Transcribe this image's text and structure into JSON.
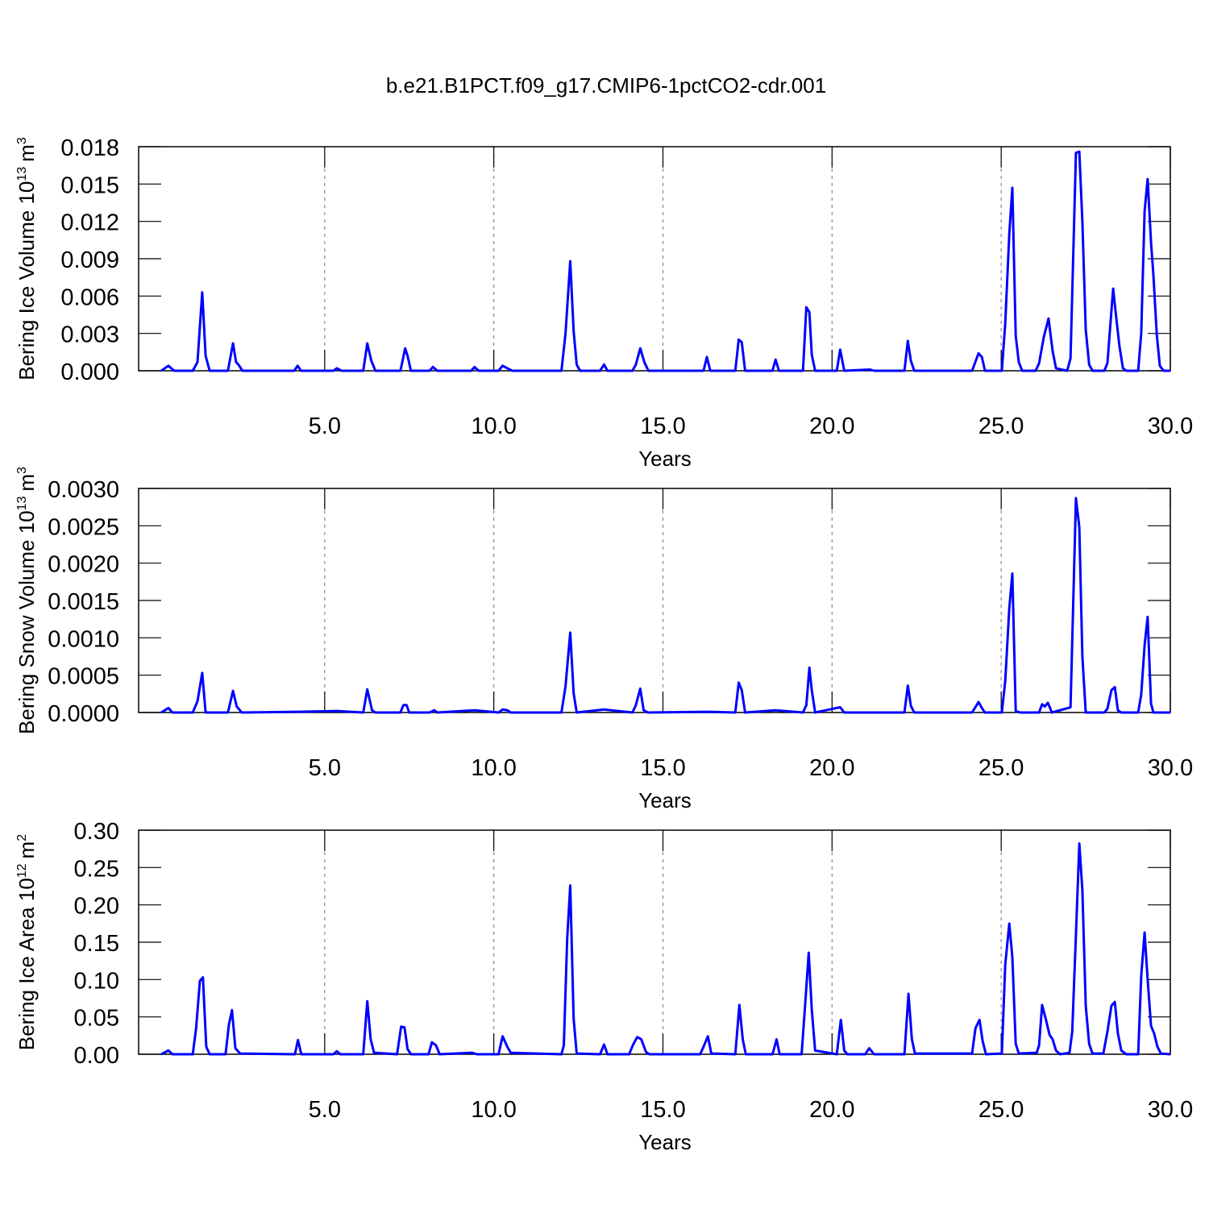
{
  "title": "b.e21.B1PCT.f09_g17.CMIP6-1pctCO2-cdr.001",
  "chart_data": [
    {
      "type": "line",
      "xlabel": "Years",
      "ylabel": {
        "text": "Bering Ice Volume 10",
        "power": "13",
        "unit": "m",
        "unit_power": "3"
      },
      "xlim": [
        -0.5,
        30
      ],
      "xticks": [
        {
          "value": 5,
          "label": "5.0"
        },
        {
          "value": 10,
          "label": "10.0"
        },
        {
          "value": 15,
          "label": "15.0"
        },
        {
          "value": 20,
          "label": "20.0"
        },
        {
          "value": 25,
          "label": "25.0"
        },
        {
          "value": 30,
          "label": "30.0"
        }
      ],
      "ylim": [
        0,
        0.018
      ],
      "yticks": [
        {
          "value": 0,
          "label": "0.000"
        },
        0.003,
        0.006,
        0.009,
        0.012,
        0.015,
        0.018
      ],
      "color": "#0000ff",
      "grid": true,
      "x": [
        0.17,
        0.38,
        0.55,
        1.1,
        1.24,
        1.38,
        1.48,
        1.6,
        2.14,
        2.29,
        2.38,
        2.45,
        2.57,
        4.1,
        4.2,
        4.3,
        5.26,
        5.36,
        5.5,
        6.14,
        6.26,
        6.38,
        6.5,
        7.24,
        7.38,
        7.45,
        7.55,
        8.1,
        8.2,
        8.33,
        9.33,
        9.43,
        9.55,
        10.14,
        10.26,
        10.4,
        10.55,
        12,
        12.12,
        12.26,
        12.36,
        12.45,
        12.55,
        13.14,
        13.26,
        13.36,
        14.1,
        14.2,
        14.33,
        14.45,
        14.57,
        16.2,
        16.3,
        16.4,
        17.14,
        17.24,
        17.33,
        17.43,
        18.24,
        18.33,
        18.43,
        19.14,
        19.24,
        19.33,
        19.4,
        19.5,
        20.14,
        20.24,
        20.36,
        21.12,
        21.24,
        22.14,
        22.24,
        22.33,
        22.43,
        24.14,
        24.33,
        24.43,
        24.52,
        25.02,
        25.12,
        25.24,
        25.33,
        25.43,
        25.52,
        25.62,
        26.02,
        26.12,
        26.26,
        26.4,
        26.52,
        26.62,
        26.95,
        27.05,
        27.21,
        27.31,
        27.4,
        27.5,
        27.6,
        27.7,
        28.05,
        28.14,
        28.31,
        28.4,
        28.5,
        28.6,
        28.7,
        29.05,
        29.14,
        29.24,
        29.33,
        29.43,
        29.5,
        29.6,
        29.69,
        29.8,
        30
      ],
      "values": [
        0,
        0.0004,
        0,
        0,
        0.0007,
        0.0063,
        0.0012,
        0,
        0,
        0.0022,
        0.0007,
        0.0005,
        0,
        0,
        0.0004,
        0,
        0,
        0.0002,
        0,
        0,
        0.0022,
        0.0008,
        0,
        0,
        0.0018,
        0.0012,
        0,
        0,
        0.0003,
        0,
        0,
        0.0003,
        0,
        0,
        0.0004,
        0.0002,
        0,
        0,
        0.003,
        0.0088,
        0.0032,
        0.0005,
        0,
        0,
        0.0005,
        0,
        0,
        0.0005,
        0.0018,
        0.0007,
        0,
        0,
        0.0011,
        0,
        0,
        0.0025,
        0.0023,
        0,
        0,
        0.0009,
        0,
        0,
        0.0051,
        0.0047,
        0.0013,
        0,
        0,
        0.0017,
        0,
        0.0001,
        0,
        0,
        0.0024,
        0.0008,
        0,
        0,
        0.0014,
        0.0011,
        0,
        0,
        0.0038,
        0.011,
        0.0147,
        0.0028,
        0.0007,
        0,
        0,
        0.0006,
        0.0027,
        0.0042,
        0.0016,
        0.0002,
        0,
        0.001,
        0.0175,
        0.0176,
        0.012,
        0.0033,
        0.0005,
        0,
        0,
        0.0006,
        0.0066,
        0.0043,
        0.0019,
        0.0002,
        0,
        0,
        0.003,
        0.0128,
        0.0154,
        0.0103,
        0.0077,
        0.0029,
        0.0004,
        0,
        0
      ]
    },
    {
      "type": "line",
      "xlabel": "Years",
      "ylabel": {
        "text": "Bering Snow Volume 10",
        "power": "13",
        "unit": "m",
        "unit_power": "3"
      },
      "xlim": [
        -0.5,
        30
      ],
      "xticks": [
        {
          "value": 5,
          "label": "5.0"
        },
        {
          "value": 10,
          "label": "10.0"
        },
        {
          "value": 15,
          "label": "15.0"
        },
        {
          "value": 20,
          "label": "20.0"
        },
        {
          "value": 25,
          "label": "25.0"
        },
        {
          "value": 30,
          "label": "30.0"
        }
      ],
      "ylim": [
        0,
        0.003
      ],
      "yticks": [
        {
          "value": 0,
          "label": "0.0000"
        },
        {
          "value": 0.0005,
          "label": "0.0005"
        },
        {
          "value": 0.001,
          "label": "0.0010"
        },
        {
          "value": 0.0015,
          "label": "0.0015"
        },
        {
          "value": 0.002,
          "label": "0.0020"
        },
        {
          "value": 0.0025,
          "label": "0.0025"
        },
        {
          "value": 0.003,
          "label": "0.0030"
        }
      ],
      "color": "#0000ff",
      "grid": true,
      "x": [
        0.17,
        0.38,
        0.5,
        1.1,
        1.24,
        1.38,
        1.48,
        2.14,
        2.29,
        2.4,
        2.55,
        4.2,
        5.36,
        6.14,
        6.26,
        6.4,
        6.5,
        7.24,
        7.33,
        7.42,
        7.5,
        8.1,
        8.24,
        8.33,
        9.43,
        10.14,
        10.26,
        10.4,
        10.5,
        12,
        12.12,
        12.26,
        12.36,
        12.45,
        13.26,
        14.1,
        14.2,
        14.33,
        14.43,
        14.55,
        16.3,
        17.14,
        17.24,
        17.33,
        17.43,
        18.33,
        19.14,
        19.24,
        19.33,
        19.4,
        19.5,
        20.24,
        20.36,
        22.14,
        22.24,
        22.33,
        22.43,
        24.14,
        24.33,
        24.43,
        24.52,
        25.02,
        25.12,
        25.24,
        25.33,
        25.43,
        25.55,
        26.12,
        26.21,
        26.29,
        26.38,
        26.5,
        27.05,
        27.21,
        27.31,
        27.4,
        27.5,
        28.05,
        28.14,
        28.26,
        28.36,
        28.45,
        28.55,
        29.05,
        29.14,
        29.24,
        29.33,
        29.43,
        29.5,
        30
      ],
      "values": [
        0,
        6e-05,
        0,
        0,
        0.00015,
        0.00053,
        0,
        0,
        0.00029,
        8e-05,
        0,
        1e-05,
        2e-05,
        0,
        0.00031,
        3e-05,
        0,
        0,
        0.0001,
        0.0001,
        0,
        0,
        3e-05,
        0,
        3e-05,
        0,
        4e-05,
        3e-05,
        0,
        0,
        0.00035,
        0.00107,
        0.00026,
        0,
        4e-05,
        0,
        0.0001,
        0.00032,
        3e-05,
        0,
        1e-05,
        0,
        0.0004,
        0.0003,
        0,
        3e-05,
        0,
        0.0001,
        0.0006,
        0.0003,
        0,
        7e-05,
        0,
        0,
        0.00036,
        9e-05,
        0,
        0,
        0.00014,
        6e-05,
        0,
        0,
        0.00042,
        0.0014,
        0.00186,
        2e-05,
        0,
        0,
        0.00011,
        8e-05,
        0.00013,
        0,
        7e-05,
        0.00287,
        0.00248,
        0.00075,
        0,
        0,
        5e-05,
        0.0003,
        0.00034,
        3e-05,
        0,
        0,
        0.00024,
        0.0009,
        0.00128,
        0.00012,
        0,
        0
      ]
    },
    {
      "type": "line",
      "xlabel": "Years",
      "ylabel": {
        "text": "Bering Ice Area 10",
        "power": "12",
        "unit": "m",
        "unit_power": "2"
      },
      "xlim": [
        -0.5,
        30
      ],
      "xticks": [
        {
          "value": 5,
          "label": "5.0"
        },
        {
          "value": 10,
          "label": "10.0"
        },
        {
          "value": 15,
          "label": "15.0"
        },
        {
          "value": 20,
          "label": "20.0"
        },
        {
          "value": 25,
          "label": "25.0"
        },
        {
          "value": 30,
          "label": "30.0"
        }
      ],
      "ylim": [
        0,
        0.3
      ],
      "yticks": [
        {
          "value": 0,
          "label": "0.00"
        },
        0.05,
        {
          "value": 0.1,
          "label": "0.10"
        },
        0.15,
        {
          "value": 0.2,
          "label": "0.20"
        },
        0.25,
        {
          "value": 0.3,
          "label": "0.30"
        }
      ],
      "color": "#0000ff",
      "grid": true,
      "x": [
        0.17,
        0.38,
        0.5,
        1.1,
        1.2,
        1.31,
        1.4,
        1.5,
        1.6,
        2.07,
        2.17,
        2.26,
        2.36,
        2.5,
        4.12,
        4.21,
        4.31,
        5.26,
        5.36,
        5.46,
        6.14,
        6.26,
        6.36,
        6.46,
        7.14,
        7.26,
        7.36,
        7.45,
        7.55,
        8.07,
        8.17,
        8.29,
        8.4,
        9.36,
        9.5,
        10.14,
        10.26,
        10.4,
        10.5,
        12,
        12.07,
        12.17,
        12.26,
        12.36,
        12.45,
        13.14,
        13.26,
        13.36,
        14,
        14.12,
        14.24,
        14.36,
        14.5,
        14.6,
        16.1,
        16.2,
        16.33,
        16.43,
        17.14,
        17.26,
        17.36,
        17.45,
        18.24,
        18.36,
        18.45,
        19.1,
        19.21,
        19.31,
        19.4,
        19.5,
        20.14,
        20.26,
        20.36,
        20.45,
        20.98,
        21.1,
        21.24,
        22.14,
        22.26,
        22.36,
        22.45,
        24.14,
        24.24,
        24.36,
        24.45,
        24.55,
        25.02,
        25.12,
        25.24,
        25.33,
        25.43,
        25.52,
        26.05,
        26.12,
        26.21,
        26.33,
        26.43,
        26.52,
        26.62,
        26.74,
        27.02,
        27.1,
        27.21,
        27.31,
        27.4,
        27.5,
        27.6,
        27.7,
        28.02,
        28.14,
        28.26,
        28.36,
        28.45,
        28.55,
        28.7,
        29.05,
        29.14,
        29.24,
        29.33,
        29.43,
        29.52,
        29.62,
        29.72,
        30
      ],
      "values": [
        0,
        0.005,
        0,
        0,
        0.035,
        0.098,
        0.103,
        0.01,
        0,
        0,
        0.04,
        0.059,
        0.008,
        0.001,
        0,
        0.019,
        0,
        0,
        0.004,
        0,
        0,
        0.071,
        0.02,
        0.002,
        0,
        0.037,
        0.036,
        0.007,
        0,
        0,
        0.016,
        0.012,
        0,
        0.002,
        0,
        0,
        0.024,
        0.01,
        0.002,
        0,
        0.012,
        0.155,
        0.226,
        0.048,
        0.001,
        0,
        0.013,
        0,
        0,
        0.013,
        0.023,
        0.02,
        0.003,
        0,
        0,
        0.01,
        0.024,
        0.001,
        0,
        0.066,
        0.02,
        0,
        0,
        0.02,
        0,
        0,
        0.07,
        0.136,
        0.06,
        0.005,
        0,
        0.046,
        0.005,
        0,
        0,
        0.008,
        0,
        0,
        0.081,
        0.02,
        0.001,
        0.001,
        0.035,
        0.046,
        0.018,
        0,
        0.001,
        0.12,
        0.175,
        0.13,
        0.014,
        0.001,
        0.002,
        0.012,
        0.066,
        0.045,
        0.026,
        0.02,
        0.005,
        0,
        0.002,
        0.03,
        0.16,
        0.282,
        0.22,
        0.065,
        0.014,
        0.001,
        0.001,
        0.03,
        0.065,
        0.07,
        0.028,
        0.005,
        0,
        0,
        0.105,
        0.163,
        0.1,
        0.038,
        0.028,
        0.01,
        0.001,
        0
      ]
    }
  ]
}
